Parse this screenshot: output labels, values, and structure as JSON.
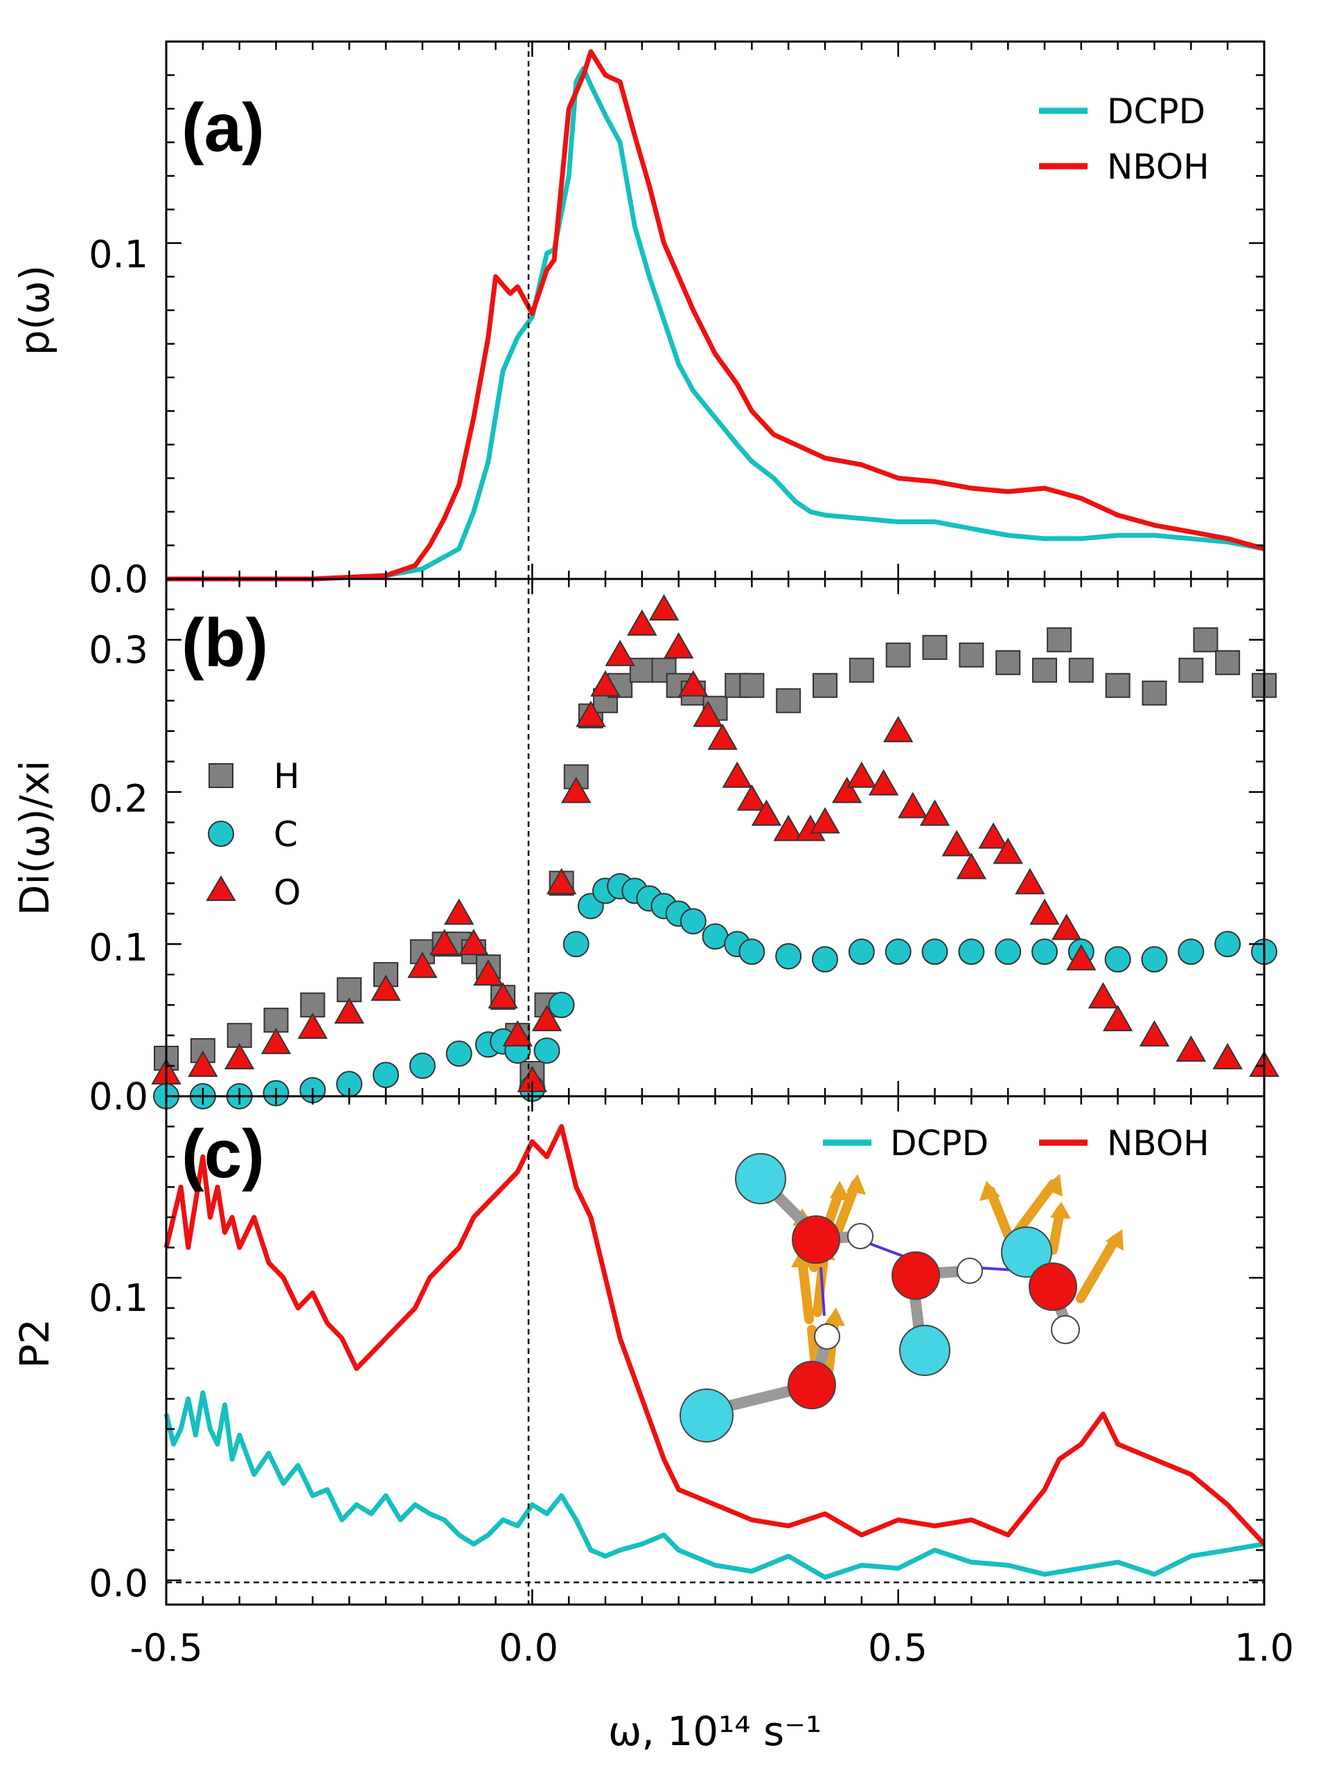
{
  "colors": {
    "dcpd": "#17bfbf",
    "nboh": "#ee1111",
    "h_marker": "#808080",
    "c_marker": "#20c5cc",
    "o_marker": "#ee1111"
  },
  "chart_data": [
    {
      "panel": "(a)",
      "type": "line",
      "xlabel": "",
      "ylabel": "p(ω)",
      "xlim": [
        -0.5,
        1.0
      ],
      "ylim": [
        0.0,
        0.16
      ],
      "yticks": [
        "0.0",
        "0.1"
      ],
      "legend": [
        "DCPD",
        "NBOH"
      ],
      "legend_position": "top-right",
      "series": [
        {
          "name": "DCPD",
          "x": [
            -0.5,
            -0.4,
            -0.3,
            -0.2,
            -0.15,
            -0.1,
            -0.08,
            -0.06,
            -0.04,
            -0.02,
            0.0,
            0.02,
            0.03,
            0.05,
            0.06,
            0.07,
            0.08,
            0.1,
            0.12,
            0.14,
            0.16,
            0.18,
            0.2,
            0.22,
            0.25,
            0.28,
            0.3,
            0.33,
            0.36,
            0.38,
            0.4,
            0.45,
            0.5,
            0.55,
            0.6,
            0.65,
            0.7,
            0.75,
            0.8,
            0.85,
            0.9,
            0.95,
            1.0
          ],
          "y": [
            0.0,
            0.0,
            0.0,
            0.001,
            0.003,
            0.009,
            0.02,
            0.035,
            0.062,
            0.072,
            0.078,
            0.097,
            0.098,
            0.12,
            0.148,
            0.152,
            0.147,
            0.138,
            0.13,
            0.105,
            0.09,
            0.077,
            0.064,
            0.056,
            0.048,
            0.04,
            0.035,
            0.03,
            0.023,
            0.02,
            0.019,
            0.018,
            0.017,
            0.017,
            0.015,
            0.013,
            0.012,
            0.012,
            0.013,
            0.013,
            0.012,
            0.011,
            0.009
          ]
        },
        {
          "name": "NBOH",
          "x": [
            -0.5,
            -0.4,
            -0.3,
            -0.2,
            -0.16,
            -0.14,
            -0.12,
            -0.1,
            -0.08,
            -0.06,
            -0.05,
            -0.03,
            -0.02,
            -0.01,
            0.0,
            0.02,
            0.03,
            0.05,
            0.07,
            0.08,
            0.1,
            0.12,
            0.14,
            0.16,
            0.18,
            0.2,
            0.22,
            0.25,
            0.28,
            0.3,
            0.33,
            0.36,
            0.4,
            0.45,
            0.5,
            0.55,
            0.6,
            0.65,
            0.7,
            0.75,
            0.8,
            0.85,
            0.9,
            0.95,
            1.0
          ],
          "y": [
            0.0,
            0.0,
            0.0,
            0.001,
            0.004,
            0.01,
            0.018,
            0.028,
            0.048,
            0.072,
            0.09,
            0.085,
            0.087,
            0.083,
            0.079,
            0.092,
            0.095,
            0.14,
            0.15,
            0.157,
            0.15,
            0.148,
            0.132,
            0.117,
            0.1,
            0.09,
            0.08,
            0.067,
            0.058,
            0.05,
            0.043,
            0.04,
            0.036,
            0.034,
            0.03,
            0.029,
            0.027,
            0.026,
            0.027,
            0.024,
            0.019,
            0.016,
            0.014,
            0.012,
            0.009
          ]
        }
      ]
    },
    {
      "panel": "(b)",
      "type": "scatter",
      "xlabel": "",
      "ylabel": "Di(ω)/xi",
      "xlim": [
        -0.5,
        1.0
      ],
      "ylim": [
        0.0,
        0.34
      ],
      "yticks": [
        "0.0",
        "0.1",
        "0.2",
        "0.3"
      ],
      "legend": [
        "H",
        "C",
        "O"
      ],
      "legend_position": "center-left",
      "series": [
        {
          "name": "H",
          "marker": "square",
          "x": [
            -0.5,
            -0.45,
            -0.4,
            -0.35,
            -0.3,
            -0.25,
            -0.2,
            -0.15,
            -0.12,
            -0.1,
            -0.08,
            -0.06,
            -0.04,
            -0.02,
            0.0,
            0.02,
            0.04,
            0.06,
            0.08,
            0.1,
            0.12,
            0.15,
            0.18,
            0.2,
            0.22,
            0.25,
            0.28,
            0.3,
            0.35,
            0.4,
            0.45,
            0.5,
            0.55,
            0.6,
            0.65,
            0.7,
            0.72,
            0.75,
            0.8,
            0.85,
            0.9,
            0.92,
            0.95,
            1.0
          ],
          "y": [
            0.025,
            0.03,
            0.04,
            0.05,
            0.06,
            0.07,
            0.08,
            0.095,
            0.1,
            0.1,
            0.095,
            0.085,
            0.065,
            0.04,
            0.015,
            0.06,
            0.14,
            0.21,
            0.25,
            0.26,
            0.27,
            0.28,
            0.28,
            0.27,
            0.265,
            0.255,
            0.27,
            0.27,
            0.26,
            0.27,
            0.28,
            0.29,
            0.295,
            0.29,
            0.285,
            0.28,
            0.3,
            0.28,
            0.27,
            0.265,
            0.28,
            0.3,
            0.285,
            0.27
          ]
        },
        {
          "name": "C",
          "marker": "circle",
          "x": [
            -0.5,
            -0.45,
            -0.4,
            -0.35,
            -0.3,
            -0.25,
            -0.2,
            -0.15,
            -0.1,
            -0.06,
            -0.04,
            -0.02,
            0.0,
            0.02,
            0.04,
            0.06,
            0.08,
            0.1,
            0.12,
            0.14,
            0.16,
            0.18,
            0.2,
            0.22,
            0.25,
            0.28,
            0.3,
            0.35,
            0.4,
            0.45,
            0.5,
            0.55,
            0.6,
            0.65,
            0.7,
            0.75,
            0.8,
            0.85,
            0.9,
            0.95,
            1.0
          ],
          "y": [
            0.0,
            0.0,
            0.0,
            0.002,
            0.004,
            0.008,
            0.014,
            0.02,
            0.028,
            0.034,
            0.036,
            0.03,
            0.005,
            0.03,
            0.06,
            0.1,
            0.125,
            0.135,
            0.138,
            0.135,
            0.13,
            0.125,
            0.12,
            0.115,
            0.105,
            0.1,
            0.095,
            0.092,
            0.09,
            0.095,
            0.095,
            0.095,
            0.095,
            0.095,
            0.095,
            0.095,
            0.09,
            0.09,
            0.095,
            0.1,
            0.095
          ]
        },
        {
          "name": "O",
          "marker": "triangle",
          "x": [
            -0.5,
            -0.45,
            -0.4,
            -0.35,
            -0.3,
            -0.25,
            -0.2,
            -0.15,
            -0.12,
            -0.1,
            -0.08,
            -0.06,
            -0.04,
            -0.02,
            0.0,
            0.02,
            0.04,
            0.06,
            0.08,
            0.1,
            0.12,
            0.15,
            0.18,
            0.2,
            0.22,
            0.24,
            0.26,
            0.28,
            0.3,
            0.32,
            0.35,
            0.38,
            0.4,
            0.43,
            0.45,
            0.48,
            0.5,
            0.52,
            0.55,
            0.58,
            0.6,
            0.63,
            0.65,
            0.68,
            0.7,
            0.73,
            0.75,
            0.78,
            0.8,
            0.85,
            0.9,
            0.95,
            1.0
          ],
          "y": [
            0.015,
            0.02,
            0.025,
            0.035,
            0.045,
            0.055,
            0.07,
            0.085,
            0.1,
            0.12,
            0.1,
            0.08,
            0.065,
            0.04,
            0.01,
            0.05,
            0.14,
            0.2,
            0.25,
            0.27,
            0.29,
            0.31,
            0.32,
            0.295,
            0.27,
            0.25,
            0.235,
            0.21,
            0.195,
            0.185,
            0.175,
            0.175,
            0.18,
            0.2,
            0.21,
            0.205,
            0.24,
            0.19,
            0.185,
            0.165,
            0.15,
            0.17,
            0.16,
            0.14,
            0.12,
            0.11,
            0.09,
            0.065,
            0.05,
            0.04,
            0.03,
            0.025,
            0.02
          ]
        }
      ]
    },
    {
      "panel": "(c)",
      "type": "line",
      "xlabel": "ω, 10¹⁴ s⁻¹",
      "ylabel": "P2",
      "xlim": [
        -0.5,
        1.0
      ],
      "ylim": [
        -0.008,
        0.16
      ],
      "yticks": [
        "0.0",
        "0.1"
      ],
      "xticks": [
        "-0.5",
        "0.0",
        "0.5",
        "1.0"
      ],
      "legend": [
        "DCPD",
        "NBOH"
      ],
      "legend_position": "top-right",
      "series": [
        {
          "name": "DCPD",
          "x": [
            -0.5,
            -0.49,
            -0.48,
            -0.47,
            -0.46,
            -0.45,
            -0.44,
            -0.43,
            -0.42,
            -0.41,
            -0.4,
            -0.38,
            -0.36,
            -0.34,
            -0.32,
            -0.3,
            -0.28,
            -0.26,
            -0.24,
            -0.22,
            -0.2,
            -0.18,
            -0.16,
            -0.14,
            -0.12,
            -0.1,
            -0.08,
            -0.06,
            -0.04,
            -0.02,
            0.0,
            0.02,
            0.04,
            0.06,
            0.08,
            0.1,
            0.12,
            0.15,
            0.18,
            0.2,
            0.25,
            0.3,
            0.35,
            0.4,
            0.45,
            0.5,
            0.55,
            0.6,
            0.65,
            0.7,
            0.75,
            0.8,
            0.85,
            0.9,
            0.95,
            1.0
          ],
          "y": [
            0.055,
            0.045,
            0.05,
            0.06,
            0.048,
            0.062,
            0.05,
            0.045,
            0.058,
            0.04,
            0.048,
            0.035,
            0.042,
            0.032,
            0.038,
            0.028,
            0.03,
            0.02,
            0.025,
            0.022,
            0.028,
            0.02,
            0.025,
            0.022,
            0.02,
            0.015,
            0.012,
            0.015,
            0.02,
            0.018,
            0.025,
            0.022,
            0.028,
            0.02,
            0.01,
            0.008,
            0.01,
            0.012,
            0.015,
            0.01,
            0.005,
            0.003,
            0.008,
            0.001,
            0.005,
            0.004,
            0.01,
            0.006,
            0.005,
            0.002,
            0.004,
            0.006,
            0.002,
            0.008,
            0.01,
            0.012
          ]
        },
        {
          "name": "NBOH",
          "x": [
            -0.5,
            -0.49,
            -0.48,
            -0.47,
            -0.46,
            -0.45,
            -0.44,
            -0.43,
            -0.42,
            -0.41,
            -0.4,
            -0.38,
            -0.36,
            -0.34,
            -0.32,
            -0.3,
            -0.28,
            -0.26,
            -0.24,
            -0.22,
            -0.2,
            -0.18,
            -0.16,
            -0.14,
            -0.12,
            -0.1,
            -0.08,
            -0.06,
            -0.04,
            -0.02,
            0.0,
            0.02,
            0.04,
            0.06,
            0.08,
            0.1,
            0.12,
            0.15,
            0.18,
            0.2,
            0.25,
            0.3,
            0.35,
            0.4,
            0.45,
            0.5,
            0.55,
            0.6,
            0.65,
            0.7,
            0.72,
            0.75,
            0.78,
            0.8,
            0.85,
            0.9,
            0.95,
            1.0
          ],
          "y": [
            0.11,
            0.12,
            0.13,
            0.11,
            0.125,
            0.14,
            0.12,
            0.13,
            0.115,
            0.12,
            0.11,
            0.12,
            0.105,
            0.1,
            0.09,
            0.095,
            0.085,
            0.08,
            0.07,
            0.075,
            0.08,
            0.085,
            0.09,
            0.1,
            0.105,
            0.11,
            0.12,
            0.125,
            0.13,
            0.135,
            0.145,
            0.14,
            0.15,
            0.13,
            0.12,
            0.1,
            0.08,
            0.06,
            0.04,
            0.03,
            0.025,
            0.02,
            0.018,
            0.022,
            0.015,
            0.02,
            0.018,
            0.02,
            0.015,
            0.03,
            0.04,
            0.045,
            0.055,
            0.045,
            0.04,
            0.035,
            0.025,
            0.012
          ]
        }
      ]
    }
  ]
}
